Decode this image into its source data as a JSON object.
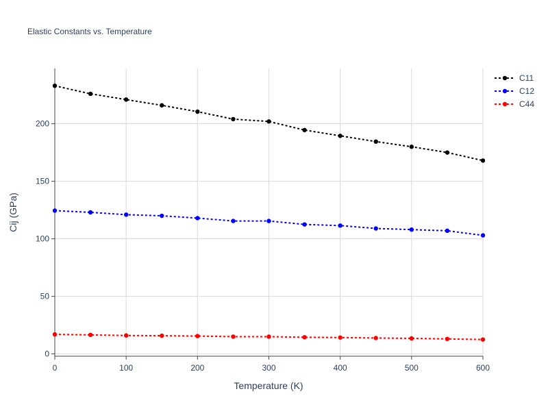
{
  "chart_data": {
    "type": "line",
    "title": "Elastic Constants vs. Temperature",
    "xlabel": "Temperature (K)",
    "ylabel": "Cij (GPa)",
    "xlim": [
      0,
      600
    ],
    "ylim": [
      -2,
      248
    ],
    "xticks": [
      0,
      100,
      200,
      300,
      400,
      500,
      600
    ],
    "yticks": [
      0,
      50,
      100,
      150,
      200
    ],
    "grid": true,
    "legend_position": "top-right",
    "x": [
      0,
      50,
      100,
      150,
      200,
      250,
      300,
      350,
      400,
      450,
      500,
      550,
      600
    ],
    "series": [
      {
        "name": "C11",
        "color": "#000000",
        "values": [
          233,
          226,
          221,
          216,
          210.5,
          204,
          202,
          194.5,
          189.5,
          184.5,
          180,
          175,
          168
        ]
      },
      {
        "name": "C12",
        "color": "#0000ff",
        "values": [
          124.5,
          123,
          121,
          120,
          118,
          115.5,
          115.5,
          112.5,
          111.5,
          109,
          108,
          107,
          103
        ]
      },
      {
        "name": "C44",
        "color": "#ff0000",
        "values": [
          17,
          16.5,
          16,
          15.8,
          15.5,
          15,
          15,
          14.5,
          14.2,
          13.8,
          13.5,
          13,
          12.5
        ]
      }
    ]
  }
}
